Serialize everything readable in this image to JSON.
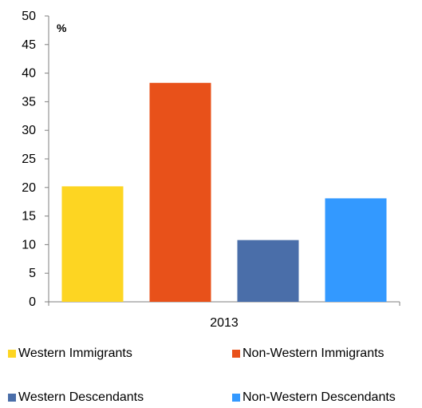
{
  "chart_data": {
    "type": "bar",
    "categories": [
      "2013"
    ],
    "series": [
      {
        "name": "Western Immigrants",
        "values": [
          20.2
        ],
        "color": "#FDD522"
      },
      {
        "name": "Non-Western Immigrants",
        "values": [
          38.3
        ],
        "color": "#E8511A"
      },
      {
        "name": "Western Descendants",
        "values": [
          10.8
        ],
        "color": "#4A6EA9"
      },
      {
        "name": "Non-Western Descendants",
        "values": [
          18.1
        ],
        "color": "#3399FF"
      }
    ],
    "ylabel": "%",
    "ylim": [
      0,
      50
    ],
    "yticks": [
      0,
      5,
      10,
      15,
      20,
      25,
      30,
      35,
      40,
      45,
      50
    ],
    "grid": false,
    "legend_position": "bottom"
  }
}
